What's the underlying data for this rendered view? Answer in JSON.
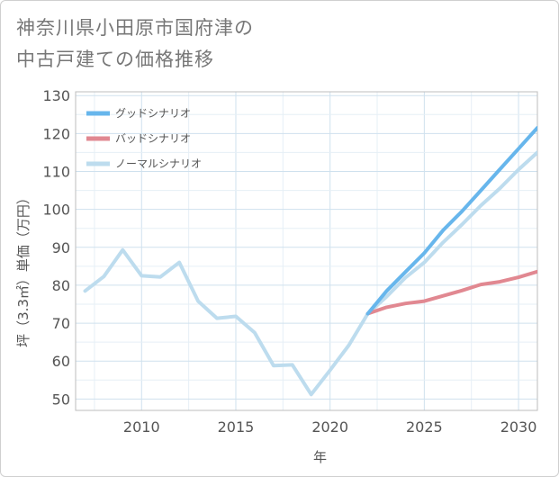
{
  "title_lines": [
    "神奈川県小田原市国府津の",
    "中古戸建ての価格推移"
  ],
  "chart_data": {
    "type": "line",
    "title": "神奈川県小田原市国府津の中古戸建ての価格推移",
    "xlabel": "年",
    "ylabel": "坪（3.3㎡）単価（万円）",
    "xlim": [
      2006.5,
      2031
    ],
    "ylim": [
      47,
      131
    ],
    "xticks": [
      2010,
      2015,
      2020,
      2025,
      2030
    ],
    "yticks": [
      50,
      60,
      70,
      80,
      90,
      100,
      110,
      120,
      130
    ],
    "grid": true,
    "legend_position": "top-left",
    "series": [
      {
        "name": "グッドシナリオ",
        "color": "#67b6ec",
        "x": [
          2022,
          2023,
          2024,
          2025,
          2026,
          2027,
          2028,
          2029,
          2030,
          2031
        ],
        "y": [
          72.5,
          78.5,
          83.5,
          88.5,
          94.5,
          99.5,
          105,
          110.5,
          116,
          121.5
        ]
      },
      {
        "name": "バッドシナリオ",
        "color": "#e18891",
        "x": [
          2022,
          2023,
          2024,
          2025,
          2026,
          2027,
          2028,
          2029,
          2030,
          2031
        ],
        "y": [
          72.5,
          74.2,
          75.2,
          75.8,
          77.2,
          78.6,
          80.2,
          80.9,
          82.1,
          83.6
        ]
      },
      {
        "name": "ノーマルシナリオ",
        "color": "#bddcee",
        "x": [
          2007,
          2008,
          2009,
          2010,
          2011,
          2012,
          2013,
          2014,
          2015,
          2016,
          2017,
          2018,
          2019,
          2020,
          2021,
          2022,
          2023,
          2024,
          2025,
          2026,
          2027,
          2028,
          2029,
          2030,
          2031
        ],
        "y": [
          78.5,
          82.3,
          89.3,
          82.5,
          82.2,
          86,
          75.8,
          71.3,
          71.8,
          67.5,
          58.8,
          59,
          51.2,
          57.6,
          64.2,
          72.5,
          77,
          82,
          86,
          91.3,
          96,
          101,
          105.5,
          110.5,
          115
        ]
      }
    ]
  }
}
